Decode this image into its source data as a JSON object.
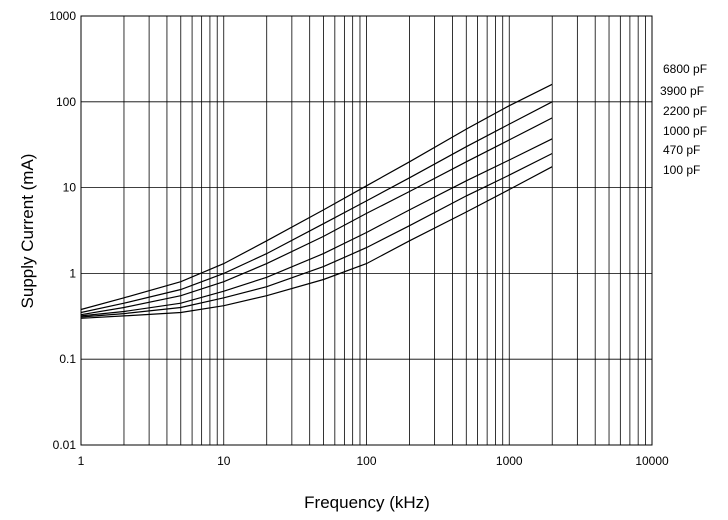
{
  "chart_data": {
    "type": "line",
    "title": "",
    "xlabel": "Frequency (kHz)",
    "ylabel": "Supply Current (mA)",
    "xscale": "log",
    "yscale": "log",
    "xlim": [
      1,
      10000
    ],
    "ylim": [
      0.01,
      1000
    ],
    "x_ticks": [
      1,
      10,
      100,
      1000,
      10000
    ],
    "x_tick_labels": [
      "1",
      "10",
      "100",
      "1000",
      "10000"
    ],
    "y_ticks": [
      0.01,
      0.1,
      1,
      10,
      100,
      1000
    ],
    "y_tick_labels": [
      "0.01",
      "0.1",
      "1",
      "10",
      "100",
      "1000"
    ],
    "grid": true,
    "legend_position": "right",
    "line_color": "#000000",
    "x": [
      1,
      2,
      5,
      10,
      20,
      50,
      100,
      200,
      500,
      1000,
      2000
    ],
    "series": [
      {
        "name": "6800 pF",
        "values": [
          0.38,
          0.52,
          0.8,
          1.3,
          2.4,
          5.5,
          10.5,
          20,
          48,
          90,
          160
        ]
      },
      {
        "name": "3900 pF",
        "values": [
          0.35,
          0.45,
          0.65,
          1.0,
          1.7,
          3.8,
          7.0,
          13,
          30,
          55,
          100
        ]
      },
      {
        "name": "2200 pF",
        "values": [
          0.33,
          0.4,
          0.55,
          0.8,
          1.3,
          2.7,
          5.0,
          9,
          20,
          36,
          65
        ]
      },
      {
        "name": "1000 pF",
        "values": [
          0.32,
          0.36,
          0.45,
          0.62,
          0.9,
          1.7,
          3.0,
          5.5,
          12,
          21,
          37
        ]
      },
      {
        "name": "470 pF",
        "values": [
          0.31,
          0.34,
          0.4,
          0.52,
          0.7,
          1.2,
          2.0,
          3.6,
          8,
          14,
          25
        ]
      },
      {
        "name": "100 pF",
        "values": [
          0.3,
          0.32,
          0.35,
          0.42,
          0.55,
          0.85,
          1.3,
          2.4,
          5.2,
          9.5,
          17.5
        ]
      }
    ]
  }
}
